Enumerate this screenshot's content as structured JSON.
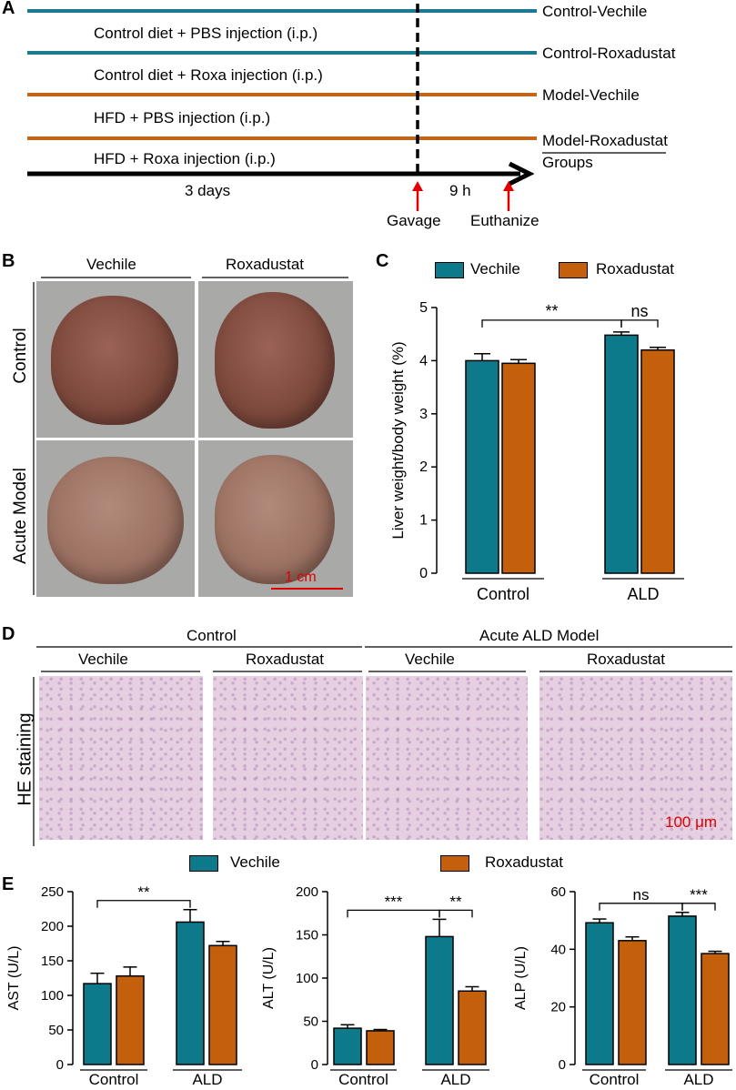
{
  "panel_letters": {
    "a": "A",
    "b": "B",
    "c": "C",
    "d": "D",
    "e": "E"
  },
  "panel_a": {
    "treatments": [
      "Control diet + PBS injection (i.p.)",
      "Control diet + Roxa injection (i.p.)",
      "HFD + PBS injection (i.p.)",
      "HFD + Roxa injection (i.p.)"
    ],
    "groups": [
      "Control-Vechile",
      "Control-Roxadustat",
      "Model-Vechile",
      "Model-Roxadustat"
    ],
    "groups_label": "Groups",
    "duration_days": "3 days",
    "duration_hours": "9 h",
    "gavage": "Gavage",
    "euthanize": "Euthanize",
    "colors": {
      "control_line": "#1a7a92",
      "model_line": "#c0661a",
      "arrow_red": "#e00000"
    }
  },
  "panel_b": {
    "col_vehicle": "Vechile",
    "col_roxa": "Roxadustat",
    "row_control": "Control",
    "row_model": "Acute Model",
    "scale_bar": "1 cm"
  },
  "panel_d": {
    "group_control": "Control",
    "group_model": "Acute  ALD Model",
    "col_labels": [
      "Vechile",
      "Roxadustat",
      "Vechile",
      "Roxadustat"
    ],
    "row_label": "HE staining",
    "scale_bar": "100 μm"
  },
  "legend": {
    "vehicle": "Vechile",
    "roxa": "Roxadustat"
  },
  "colors": {
    "vehicle": "#0d7a8c",
    "roxa": "#c45f0c",
    "scale_red": "#e00000"
  },
  "chart_data": [
    {
      "id": "C",
      "type": "bar",
      "ylabel": "Liver weight/body weight (%)",
      "categories": [
        "Control",
        "ALD"
      ],
      "series": [
        {
          "name": "Vechile",
          "values": [
            4.0,
            4.48
          ],
          "errors": [
            0.13,
            0.06
          ]
        },
        {
          "name": "Roxadustat",
          "values": [
            3.95,
            4.2
          ],
          "errors": [
            0.07,
            0.05
          ]
        }
      ],
      "ylim": [
        0,
        5
      ],
      "yticks": [
        "0",
        "1",
        "2",
        "3",
        "4",
        "5"
      ],
      "significance": [
        {
          "label": "**",
          "from": "Control-Vechile",
          "to": "ALD-Vechile"
        },
        {
          "label": "ns",
          "from": "ALD-Vechile",
          "to": "ALD-Roxadustat"
        }
      ]
    },
    {
      "id": "E1",
      "type": "bar",
      "ylabel": "AST (U/L)",
      "categories": [
        "Control",
        "ALD"
      ],
      "series": [
        {
          "name": "Vechile",
          "values": [
            117,
            206
          ],
          "errors": [
            15,
            18
          ]
        },
        {
          "name": "Roxadustat",
          "values": [
            128,
            172
          ],
          "errors": [
            13,
            6
          ]
        }
      ],
      "ylim": [
        0,
        250
      ],
      "yticks": [
        "0",
        "50",
        "100",
        "150",
        "200",
        "250"
      ],
      "significance": [
        {
          "label": "**",
          "from": "Control-Vechile",
          "to": "ALD-Vechile"
        }
      ]
    },
    {
      "id": "E2",
      "type": "bar",
      "ylabel": "ALT (U/L)",
      "categories": [
        "Control",
        "ALD"
      ],
      "series": [
        {
          "name": "Vechile",
          "values": [
            42,
            148
          ],
          "errors": [
            4,
            20
          ]
        },
        {
          "name": "Roxadustat",
          "values": [
            39,
            85
          ],
          "errors": [
            1.5,
            5
          ]
        }
      ],
      "ylim": [
        0,
        200
      ],
      "yticks": [
        "0",
        "50",
        "100",
        "150",
        "200"
      ],
      "significance": [
        {
          "label": "***",
          "from": "Control-Vechile",
          "to": "ALD-Vechile"
        },
        {
          "label": "**",
          "from": "ALD-Vechile",
          "to": "ALD-Roxadustat"
        }
      ]
    },
    {
      "id": "E3",
      "type": "bar",
      "ylabel": "ALP (U/L)",
      "categories": [
        "Control",
        "ALD"
      ],
      "series": [
        {
          "name": "Vechile",
          "values": [
            49.2,
            51.5
          ],
          "errors": [
            1.3,
            1.3
          ]
        },
        {
          "name": "Roxadustat",
          "values": [
            43,
            38.5
          ],
          "errors": [
            1.3,
            0.8
          ]
        }
      ],
      "ylim": [
        0,
        60
      ],
      "yticks": [
        "0",
        "20",
        "40",
        "60"
      ],
      "significance": [
        {
          "label": "ns",
          "from": "Control-Vechile",
          "to": "ALD-Vechile"
        },
        {
          "label": "***",
          "from": "ALD-Vechile",
          "to": "ALD-Roxadustat"
        }
      ]
    }
  ]
}
